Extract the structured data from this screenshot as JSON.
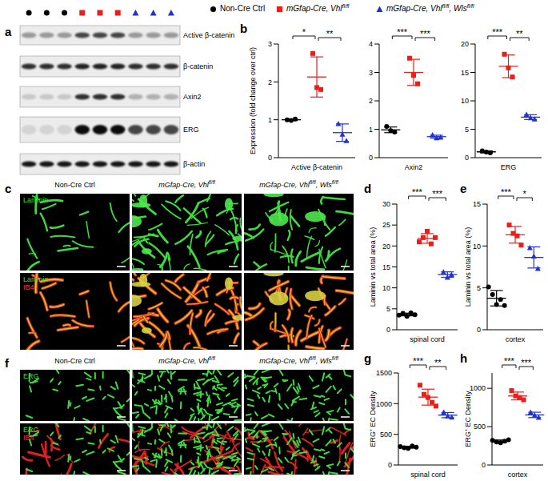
{
  "blot": {
    "panel": "a",
    "rows": [
      "Active β-catenin",
      "β-catenin",
      "Axin2",
      "ERG",
      "β-actin"
    ]
  },
  "images": [
    {
      "panel": "c",
      "rows": [
        [
          {
            "text": "Laminin",
            "color": "#33dd33"
          }
        ],
        [
          {
            "text": "Laminin",
            "color": "#33dd33"
          },
          {
            "text": "IB4",
            "color": "#ff3333"
          }
        ]
      ]
    },
    {
      "panel": "f",
      "rows": [
        [
          {
            "text": "ERG",
            "color": "#33dd33"
          }
        ],
        [
          {
            "text": "ERG",
            "color": "#33dd33"
          },
          {
            "text": "IB4",
            "color": "#ff3333"
          }
        ]
      ]
    }
  ],
  "chart_data": [
    {
      "panel": "b",
      "type": "scatter",
      "ylabel": "Expression (fold change over ctrl)",
      "xlabel": "Active β-catenin",
      "ylim": [
        0,
        3
      ],
      "yticks": [
        0,
        1,
        2,
        3
      ],
      "series": [
        {
          "name": "Non-Cre Ctrl",
          "color": "#000000",
          "marker": "circle",
          "values": [
            1.0,
            0.98,
            1.02
          ],
          "mean": 1.0,
          "sd": 0.02
        },
        {
          "name": "mGfap-Cre, Vhlfl/fl",
          "superscript": "fl/fl",
          "color": "#e8201c",
          "marker": "square",
          "values": [
            2.75,
            1.85,
            1.8
          ],
          "mean": 2.13,
          "sd": 0.53
        },
        {
          "name": "mGfap-Cre, Vhlfl/fl, Wlsfl/fl",
          "superscript": "fl/fl",
          "color": "#2233cc",
          "marker": "triangle",
          "values": [
            0.9,
            0.62,
            0.45
          ],
          "mean": 0.66,
          "sd": 0.23
        }
      ],
      "significance": [
        {
          "pair": [
            0,
            1
          ],
          "label": "*"
        },
        {
          "pair": [
            1,
            2
          ],
          "label": "**"
        }
      ]
    },
    {
      "type": "scatter",
      "xlabel": "Axin2",
      "ylim": [
        0,
        4
      ],
      "yticks": [
        0,
        1,
        2,
        3,
        4
      ],
      "series": [
        {
          "name": "Non-Cre Ctrl",
          "color": "#000000",
          "marker": "circle",
          "values": [
            1.1,
            0.95,
            0.9
          ],
          "mean": 0.98,
          "sd": 0.1
        },
        {
          "name": "mGfap-Cre, Vhlfl/fl",
          "superscript": "fl/fl",
          "color": "#e8201c",
          "marker": "square",
          "values": [
            3.5,
            2.9,
            2.6
          ],
          "mean": 3.0,
          "sd": 0.46
        },
        {
          "name": "mGfap-Cre, Vhlfl/fl, Wlsfl/fl",
          "superscript": "fl/fl",
          "color": "#2233cc",
          "marker": "triangle",
          "values": [
            0.8,
            0.7,
            0.72
          ],
          "mean": 0.74,
          "sd": 0.05
        }
      ],
      "significance": [
        {
          "pair": [
            0,
            1
          ],
          "label": "***"
        },
        {
          "pair": [
            1,
            2
          ],
          "label": "***"
        }
      ]
    },
    {
      "type": "scatter",
      "xlabel": "ERG",
      "ylim": [
        0,
        20
      ],
      "yticks": [
        0,
        5,
        10,
        15,
        20
      ],
      "series": [
        {
          "name": "Non-Cre Ctrl",
          "color": "#000000",
          "marker": "circle",
          "values": [
            1.2,
            1.0,
            0.85
          ],
          "mean": 1.02,
          "sd": 0.18
        },
        {
          "name": "mGfap-Cre, Vhlfl/fl",
          "superscript": "fl/fl",
          "color": "#e8201c",
          "marker": "square",
          "values": [
            18.2,
            15.8,
            14.2
          ],
          "mean": 16.07,
          "sd": 2.0
        },
        {
          "name": "mGfap-Cre, Vhlfl/fl, Wlsfl/fl",
          "superscript": "fl/fl",
          "color": "#2233cc",
          "marker": "triangle",
          "values": [
            7.6,
            7.0,
            6.8
          ],
          "mean": 7.13,
          "sd": 0.42
        }
      ],
      "significance": [
        {
          "pair": [
            0,
            1
          ],
          "label": "***"
        },
        {
          "pair": [
            1,
            2
          ],
          "label": "**"
        }
      ]
    },
    {
      "panel": "d",
      "type": "scatter",
      "ylabel": "Laminin vs total area (%)",
      "xlabel": "spinal cord",
      "ylim": [
        0,
        30
      ],
      "yticks": [
        0,
        5,
        10,
        15,
        20,
        25,
        30
      ],
      "series": [
        {
          "name": "Non-Cre Ctrl",
          "color": "#000000",
          "marker": "circle",
          "values": [
            3.5,
            3.9,
            3.2,
            4.0,
            3.6
          ],
          "mean": 3.64,
          "sd": 0.32
        },
        {
          "name": "mGfap-Cre, Vhlfl/fl",
          "superscript": "fl/fl",
          "color": "#e8201c",
          "marker": "square",
          "values": [
            21,
            22,
            23.5,
            20.5,
            22
          ],
          "mean": 21.8,
          "sd": 1.15
        },
        {
          "name": "mGfap-Cre, Vhlfl/fl, Wlsfl/fl",
          "superscript": "fl/fl",
          "color": "#2233cc",
          "marker": "triangle",
          "values": [
            13.8,
            12.5,
            13.2
          ],
          "mean": 13.17,
          "sd": 0.65
        }
      ],
      "significance": [
        {
          "pair": [
            0,
            1
          ],
          "label": "***"
        },
        {
          "pair": [
            1,
            2
          ],
          "label": "***"
        }
      ]
    },
    {
      "panel": "e",
      "type": "scatter",
      "ylabel": "Laminin vs total area (%)",
      "xlabel": "cortex",
      "ylim": [
        0,
        15
      ],
      "yticks": [
        0,
        5,
        10,
        15
      ],
      "series": [
        {
          "name": "Non-Cre Ctrl",
          "color": "#000000",
          "marker": "circle",
          "values": [
            5.1,
            4.2,
            3.0,
            3.6,
            2.9
          ],
          "mean": 3.76,
          "sd": 0.92
        },
        {
          "name": "mGfap-Cre, Vhlfl/fl",
          "superscript": "fl/fl",
          "color": "#e8201c",
          "marker": "square",
          "values": [
            12.5,
            11.5,
            11.2,
            10.1
          ],
          "mean": 11.33,
          "sd": 0.99
        },
        {
          "name": "mGfap-Cre, Vhlfl/fl, Wlsfl/fl",
          "superscript": "fl/fl",
          "color": "#2233cc",
          "marker": "triangle",
          "values": [
            9.8,
            8.8,
            7.3
          ],
          "mean": 8.63,
          "sd": 1.26
        }
      ],
      "significance": [
        {
          "pair": [
            0,
            1
          ],
          "label": "***"
        },
        {
          "pair": [
            1,
            2
          ],
          "label": "*"
        }
      ]
    },
    {
      "panel": "g",
      "type": "scatter",
      "ylabel": "ERG⁺ EC Density",
      "xlabel": "spinal cord",
      "ylim": [
        0,
        1500
      ],
      "yticks": [
        0,
        500,
        1000,
        1500
      ],
      "series": [
        {
          "name": "Non-Cre Ctrl",
          "color": "#000000",
          "marker": "circle",
          "values": [
            300,
            280,
            270,
            310,
            290
          ],
          "mean": 290,
          "sd": 16
        },
        {
          "name": "mGfap-Cre, Vhlfl/fl",
          "superscript": "fl/fl",
          "color": "#e8201c",
          "marker": "square",
          "values": [
            1300,
            1150,
            1100,
            1020,
            960
          ],
          "mean": 1106,
          "sd": 130
        },
        {
          "name": "mGfap-Cre, Vhlfl/fl, Wlsfl/fl",
          "superscript": "fl/fl",
          "color": "#2233cc",
          "marker": "triangle",
          "values": [
            860,
            800,
            780
          ],
          "mean": 813,
          "sd": 42
        }
      ],
      "significance": [
        {
          "pair": [
            0,
            1
          ],
          "label": "***"
        },
        {
          "pair": [
            1,
            2
          ],
          "label": "**"
        }
      ]
    },
    {
      "panel": "h",
      "type": "scatter",
      "ylabel": "ERG⁺ EC Density",
      "xlabel": "cortex",
      "ylim": [
        0,
        1200
      ],
      "yticks": [
        0,
        500,
        1000
      ],
      "series": [
        {
          "name": "Non-Cre Ctrl",
          "color": "#000000",
          "marker": "circle",
          "values": [
            320,
            300,
            290,
            310,
            330
          ],
          "mean": 310,
          "sd": 16
        },
        {
          "name": "mGfap-Cre, Vhlfl/fl",
          "superscript": "fl/fl",
          "color": "#e8201c",
          "marker": "square",
          "values": [
            970,
            900,
            880,
            850
          ],
          "mean": 900,
          "sd": 51
        },
        {
          "name": "mGfap-Cre, Vhlfl/fl, Wlsfl/fl",
          "superscript": "fl/fl",
          "color": "#2233cc",
          "marker": "triangle",
          "values": [
            690,
            650,
            620
          ],
          "mean": 653,
          "sd": 35
        }
      ],
      "significance": [
        {
          "pair": [
            0,
            1
          ],
          "label": "***"
        },
        {
          "pair": [
            1,
            2
          ],
          "label": "***"
        }
      ]
    }
  ]
}
